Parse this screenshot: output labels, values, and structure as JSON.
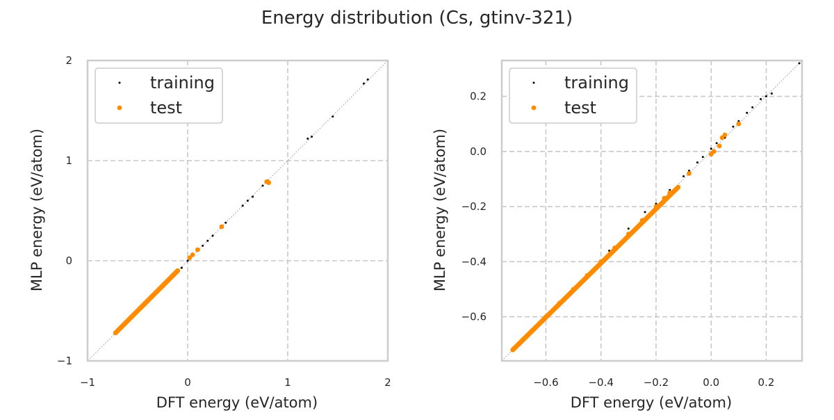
{
  "figure": {
    "title": "Energy distribution (Cs, gtinv-321)"
  },
  "colors": {
    "training": "#000000",
    "test": "#ff8c00",
    "grid": "#c8c8c8",
    "frame": "#cccccc"
  },
  "chart_data": [
    {
      "type": "scatter",
      "xlabel": "DFT energy (eV/atom)",
      "ylabel": "MLP energy (eV/atom)",
      "xlim": [
        -1,
        2
      ],
      "ylim": [
        -1,
        2
      ],
      "xticks": [
        -1,
        0,
        1,
        2
      ],
      "yticks": [
        -1,
        0,
        1,
        2
      ],
      "xtick_labels": [
        "−1",
        "0",
        "1",
        "2"
      ],
      "ytick_labels": [
        "−1",
        "0",
        "1",
        "2"
      ],
      "grid": true,
      "legend": {
        "placement": "top-left",
        "entries": [
          "training",
          "test"
        ]
      },
      "series": [
        {
          "name": "training",
          "points": [
            [
              -0.72,
              -0.72
            ],
            [
              -0.6,
              -0.6
            ],
            [
              -0.45,
              -0.45
            ],
            [
              -0.3,
              -0.3
            ],
            [
              -0.2,
              -0.2
            ],
            [
              -0.12,
              -0.12
            ],
            [
              -0.06,
              -0.07
            ],
            [
              0.0,
              0.0
            ],
            [
              0.05,
              0.06
            ],
            [
              0.1,
              0.11
            ],
            [
              0.15,
              0.15
            ],
            [
              0.2,
              0.2
            ],
            [
              0.25,
              0.25
            ],
            [
              0.33,
              0.33
            ],
            [
              0.38,
              0.38
            ],
            [
              0.55,
              0.55
            ],
            [
              0.6,
              0.6
            ],
            [
              0.65,
              0.64
            ],
            [
              0.75,
              0.75
            ],
            [
              0.8,
              0.8
            ],
            [
              1.2,
              1.22
            ],
            [
              1.24,
              1.24
            ],
            [
              1.45,
              1.44
            ],
            [
              1.76,
              1.77
            ],
            [
              1.8,
              1.81
            ]
          ]
        },
        {
          "name": "test",
          "points": [
            [
              -0.72,
              -0.72
            ],
            [
              -0.65,
              -0.65
            ],
            [
              -0.55,
              -0.55
            ],
            [
              -0.45,
              -0.45
            ],
            [
              -0.35,
              -0.35
            ],
            [
              -0.25,
              -0.25
            ],
            [
              -0.15,
              -0.15
            ],
            [
              -0.1,
              -0.1
            ],
            [
              0.02,
              0.03
            ],
            [
              0.05,
              0.06
            ],
            [
              0.1,
              0.11
            ],
            [
              0.34,
              0.34
            ],
            [
              0.79,
              0.79
            ],
            [
              0.81,
              0.78
            ]
          ]
        }
      ]
    },
    {
      "type": "scatter",
      "xlabel": "DFT energy (eV/atom)",
      "ylabel": "MLP energy (eV/atom)",
      "xlim": [
        -0.76,
        0.33
      ],
      "ylim": [
        -0.76,
        0.33
      ],
      "xticks": [
        -0.6,
        -0.4,
        -0.2,
        0.0,
        0.2
      ],
      "yticks": [
        -0.6,
        -0.4,
        -0.2,
        0.0,
        0.2
      ],
      "xtick_labels": [
        "−0.6",
        "−0.4",
        "−0.2",
        "0.0",
        "0.2"
      ],
      "ytick_labels": [
        "−0.6",
        "−0.4",
        "−0.2",
        "0.0",
        "0.2"
      ],
      "grid": true,
      "legend": {
        "placement": "top-left",
        "entries": [
          "training",
          "test"
        ]
      },
      "series": [
        {
          "name": "training",
          "points": [
            [
              -0.72,
              -0.72
            ],
            [
              -0.6,
              -0.6
            ],
            [
              -0.45,
              -0.45
            ],
            [
              -0.37,
              -0.36
            ],
            [
              -0.3,
              -0.28
            ],
            [
              -0.24,
              -0.22
            ],
            [
              -0.2,
              -0.19
            ],
            [
              -0.15,
              -0.14
            ],
            [
              -0.1,
              -0.09
            ],
            [
              -0.08,
              -0.07
            ],
            [
              -0.05,
              -0.04
            ],
            [
              -0.03,
              -0.02
            ],
            [
              0.0,
              0.01
            ],
            [
              0.02,
              0.03
            ],
            [
              0.05,
              0.05
            ],
            [
              0.08,
              0.09
            ],
            [
              0.1,
              0.11
            ],
            [
              0.13,
              0.14
            ],
            [
              0.15,
              0.16
            ],
            [
              0.18,
              0.19
            ],
            [
              0.2,
              0.2
            ],
            [
              0.22,
              0.21
            ],
            [
              0.32,
              0.32
            ]
          ]
        },
        {
          "name": "test",
          "points": [
            [
              -0.72,
              -0.72
            ],
            [
              -0.7,
              -0.7
            ],
            [
              -0.65,
              -0.65
            ],
            [
              -0.6,
              -0.6
            ],
            [
              -0.55,
              -0.55
            ],
            [
              -0.5,
              -0.5
            ],
            [
              -0.45,
              -0.45
            ],
            [
              -0.4,
              -0.4
            ],
            [
              -0.35,
              -0.35
            ],
            [
              -0.3,
              -0.3
            ],
            [
              -0.25,
              -0.25
            ],
            [
              -0.2,
              -0.2
            ],
            [
              -0.17,
              -0.17
            ],
            [
              -0.15,
              -0.15
            ],
            [
              -0.12,
              -0.13
            ],
            [
              -0.08,
              -0.08
            ],
            [
              0.0,
              -0.01
            ],
            [
              0.01,
              0.0
            ],
            [
              0.03,
              0.02
            ],
            [
              0.04,
              0.05
            ],
            [
              0.05,
              0.06
            ],
            [
              0.1,
              0.1
            ]
          ]
        }
      ]
    }
  ]
}
